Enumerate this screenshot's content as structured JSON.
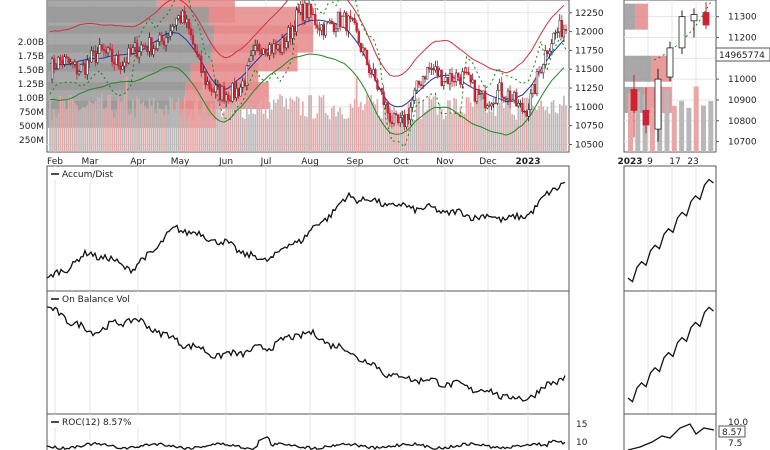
{
  "colors": {
    "up": "#ffffff",
    "down": "#cc2233",
    "price_line": "#222222",
    "upper_band": "#cc3344",
    "mid_band": "#2233aa",
    "lower_band": "#228822",
    "sar_dots": "#118811",
    "vbp_gray": "#999999",
    "vbp_red": "#e58a8a",
    "vol_up": "#b8b8b8",
    "vol_down": "#e8a6a6",
    "grid": "#e4e4e4",
    "panel_border": "#555555",
    "indicator_line": "#111111"
  },
  "chart_data": [
    {
      "type": "candlestick",
      "panel": "main-price",
      "x_tick_labels": [
        "Feb",
        "Mar",
        "Apr",
        "May",
        "Jun",
        "Jul",
        "Aug",
        "Sep",
        "Oct",
        "Nov",
        "Dec",
        "2023"
      ],
      "right_axis_ticks": [
        "12250",
        "12000",
        "11750",
        "11500",
        "11250",
        "11000",
        "10750",
        "10500"
      ],
      "left_volume_ticks": [
        "2.00B",
        "1.75B",
        "1.50B",
        "1.25B",
        "1.00B",
        "750M",
        "500M",
        "250M"
      ],
      "ylim": [
        10400,
        12420
      ],
      "close_series_monthly": [
        {
          "x": "Feb",
          "close": 11500
        },
        {
          "x": "Mar",
          "close": 11620
        },
        {
          "x": "Apr",
          "close": 11700
        },
        {
          "x": "May",
          "close": 12100
        },
        {
          "x": "Jun",
          "close": 11100
        },
        {
          "x": "Jul",
          "close": 11750
        },
        {
          "x": "Aug",
          "close": 12200
        },
        {
          "x": "Sep",
          "close": 12050
        },
        {
          "x": "Oct",
          "close": 10800
        },
        {
          "x": "Nov",
          "close": 11500
        },
        {
          "x": "Dec",
          "close": 11200
        },
        {
          "x": "2023",
          "close": 11050
        },
        {
          "x": "end",
          "close": 12150
        }
      ],
      "volume_by_price": [
        {
          "price": 12300,
          "gray": 0.42,
          "red": 0.3
        },
        {
          "price": 12150,
          "gray": 0.62,
          "red": 0.4
        },
        {
          "price": 11900,
          "gray": 0.64,
          "red": 0.38
        },
        {
          "price": 11650,
          "gray": 0.63,
          "red": 0.33
        },
        {
          "price": 11400,
          "gray": 0.55,
          "red": 0.26
        },
        {
          "price": 11150,
          "gray": 0.53,
          "red": 0.32
        },
        {
          "price": 10900,
          "gray": 0.47,
          "red": 0.18
        }
      ]
    },
    {
      "type": "candlestick",
      "panel": "inset-price",
      "x_tick_labels": [
        "2023",
        "9",
        "17",
        "23"
      ],
      "right_axis_ticks": [
        "11300",
        "11200",
        "11100",
        "11000",
        "10900",
        "10800",
        "10700"
      ],
      "volume_label": "14965774",
      "ylim": [
        10650,
        11380
      ],
      "candles": [
        {
          "o": 10950,
          "h": 11020,
          "l": 10720,
          "c": 10850
        },
        {
          "o": 10850,
          "h": 10960,
          "l": 10740,
          "c": 10780
        },
        {
          "o": 10760,
          "h": 11050,
          "l": 10700,
          "c": 11000
        },
        {
          "o": 11010,
          "h": 11180,
          "l": 10990,
          "c": 11150
        },
        {
          "o": 11150,
          "h": 11330,
          "l": 11120,
          "c": 11300
        },
        {
          "o": 11280,
          "h": 11340,
          "l": 11200,
          "c": 11310
        },
        {
          "o": 11320,
          "h": 11370,
          "l": 11240,
          "c": 11260
        }
      ]
    },
    {
      "type": "line",
      "panel": "accum-dist",
      "title": "Accum/Dist",
      "x": [
        "Feb",
        "Mar",
        "Apr",
        "May",
        "Jun",
        "Jul",
        "Aug",
        "Sep",
        "Oct",
        "Nov",
        "Dec",
        "2023",
        "end"
      ],
      "values": [
        0.05,
        0.3,
        0.15,
        0.52,
        0.4,
        0.22,
        0.45,
        0.8,
        0.72,
        0.68,
        0.62,
        0.6,
        0.95
      ]
    },
    {
      "type": "line",
      "panel": "on-balance-vol",
      "title": "On Balance Vol",
      "x": [
        "Feb",
        "Mar",
        "Apr",
        "May",
        "Jun",
        "Jul",
        "Aug",
        "Sep",
        "Oct",
        "Nov",
        "Dec",
        "2023",
        "end"
      ],
      "values": [
        0.92,
        0.7,
        0.82,
        0.62,
        0.48,
        0.55,
        0.7,
        0.52,
        0.3,
        0.25,
        0.18,
        0.08,
        0.3
      ]
    },
    {
      "type": "line",
      "panel": "roc",
      "title": "ROC(12) 8.57%",
      "right_axis_ticks": [
        "15",
        "10"
      ],
      "inset_ticks": [
        "10.0",
        "8.57",
        "7.5"
      ],
      "ylim": [
        0,
        18
      ]
    }
  ]
}
